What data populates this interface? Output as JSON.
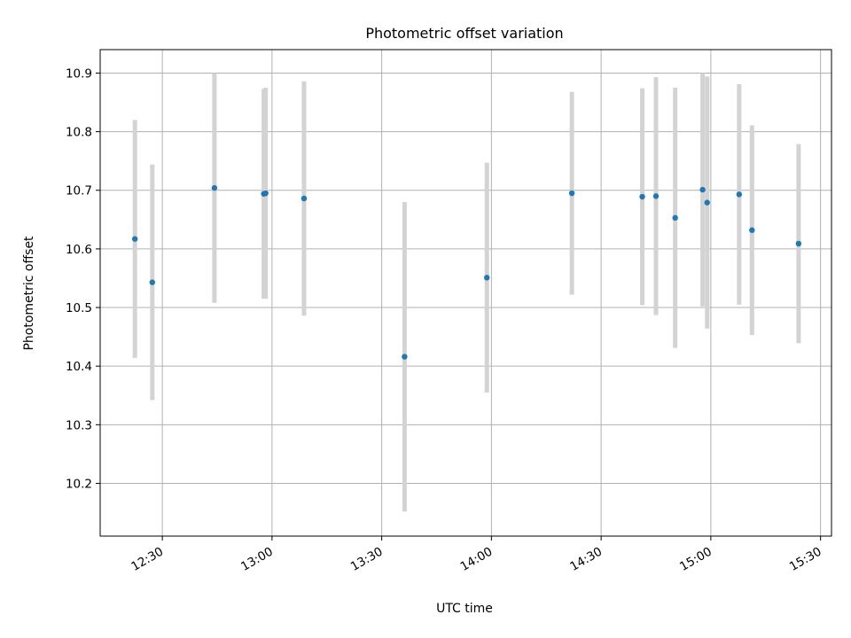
{
  "chart_data": {
    "type": "scatter",
    "title": "Photometric offset variation",
    "xlabel": "UTC time",
    "ylabel": "Photometric offset",
    "x_axis_type": "time",
    "xlim": [
      "12:13",
      "15:33"
    ],
    "ylim": [
      10.11,
      10.94
    ],
    "x_ticks": [
      "12:30",
      "13:00",
      "13:30",
      "14:00",
      "14:30",
      "15:00",
      "15:30"
    ],
    "y_ticks": [
      10.2,
      10.3,
      10.4,
      10.5,
      10.6,
      10.7,
      10.8,
      10.9
    ],
    "grid": true,
    "colors": {
      "point": "#1f77b4",
      "error_bar": "#d3d3d3",
      "grid": "#b0b0b0"
    },
    "points": [
      {
        "x": "12:22:30",
        "y": 10.617,
        "yerr": 0.203
      },
      {
        "x": "12:27:15",
        "y": 10.543,
        "yerr": 0.201
      },
      {
        "x": "12:44:15",
        "y": 10.704,
        "yerr": 0.196
      },
      {
        "x": "12:57:45",
        "y": 10.694,
        "yerr": 0.179
      },
      {
        "x": "12:58:15",
        "y": 10.695,
        "yerr": 0.18
      },
      {
        "x": "13:08:45",
        "y": 10.686,
        "yerr": 0.2
      },
      {
        "x": "13:36:15",
        "y": 10.416,
        "yerr": 0.264
      },
      {
        "x": "13:58:45",
        "y": 10.551,
        "yerr": 0.196
      },
      {
        "x": "14:22:00",
        "y": 10.695,
        "yerr": 0.173
      },
      {
        "x": "14:41:15",
        "y": 10.689,
        "yerr": 0.185
      },
      {
        "x": "14:45:00",
        "y": 10.69,
        "yerr": 0.203
      },
      {
        "x": "14:50:15",
        "y": 10.653,
        "yerr": 0.222
      },
      {
        "x": "14:57:45",
        "y": 10.701,
        "yerr": 0.199
      },
      {
        "x": "14:59:00",
        "y": 10.679,
        "yerr": 0.215
      },
      {
        "x": "15:07:45",
        "y": 10.693,
        "yerr": 0.188
      },
      {
        "x": "15:11:15",
        "y": 10.632,
        "yerr": 0.179
      },
      {
        "x": "15:24:00",
        "y": 10.609,
        "yerr": 0.17
      }
    ]
  }
}
